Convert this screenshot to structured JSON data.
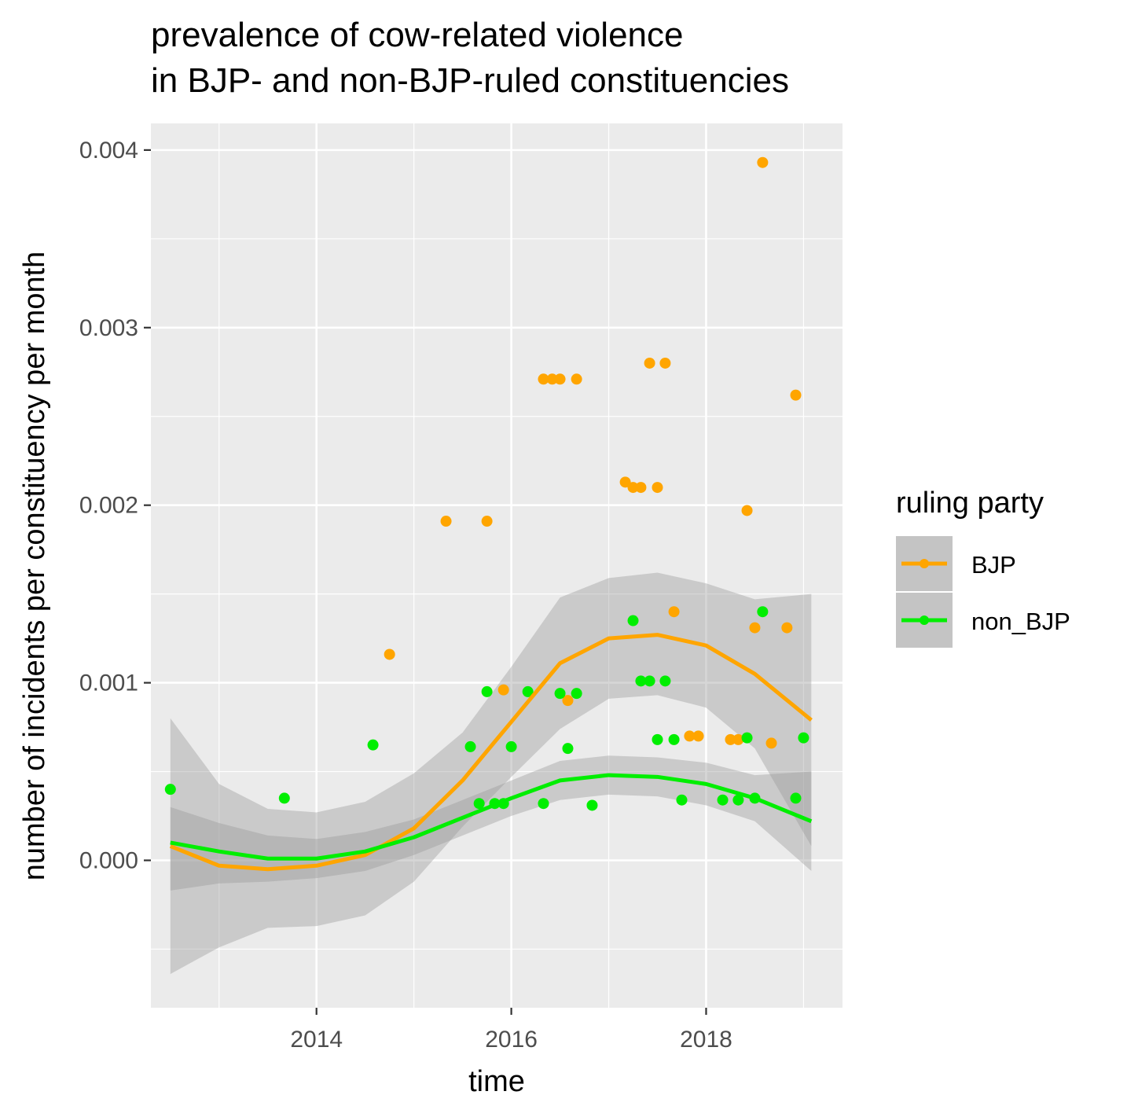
{
  "chart_data": {
    "type": "scatter",
    "title": [
      "prevalence of cow-related violence",
      "in BJP- and non-BJP-ruled constituencies"
    ],
    "xlabel": "time",
    "ylabel": "number of incidents per constituency per month",
    "xlim": [
      2012.3,
      2019.4
    ],
    "ylim": [
      -0.00083,
      0.00415
    ],
    "x_ticks": [
      2014,
      2016,
      2018
    ],
    "x_tick_labels": [
      "2014",
      "2016",
      "2018"
    ],
    "y_ticks": [
      0.0,
      0.001,
      0.002,
      0.003,
      0.004
    ],
    "y_tick_labels": [
      "0.000",
      "0.001",
      "0.002",
      "0.003",
      "0.004"
    ],
    "grid": true,
    "legend": {
      "title": "ruling party",
      "position": "right",
      "entries": [
        "BJP",
        "non_BJP"
      ]
    },
    "colors": {
      "BJP": "#FFA500",
      "non_BJP": "#00EE00",
      "panel_bg": "#EBEBEB",
      "grid": "#FFFFFF",
      "ribbon": "#999999"
    },
    "series": [
      {
        "name": "BJP",
        "points": [
          [
            2014.75,
            0.00116
          ],
          [
            2015.33,
            0.00191
          ],
          [
            2015.75,
            0.00191
          ],
          [
            2015.92,
            0.00096
          ],
          [
            2016.33,
            0.00271
          ],
          [
            2016.42,
            0.00271
          ],
          [
            2016.5,
            0.00271
          ],
          [
            2016.58,
            0.0009
          ],
          [
            2016.67,
            0.00271
          ],
          [
            2017.17,
            0.00213
          ],
          [
            2017.25,
            0.0021
          ],
          [
            2017.33,
            0.0021
          ],
          [
            2017.42,
            0.0028
          ],
          [
            2017.5,
            0.0021
          ],
          [
            2017.58,
            0.0028
          ],
          [
            2017.67,
            0.0014
          ],
          [
            2017.83,
            0.0007
          ],
          [
            2017.92,
            0.0007
          ],
          [
            2018.25,
            0.00068
          ],
          [
            2018.33,
            0.00068
          ],
          [
            2018.42,
            0.00197
          ],
          [
            2018.5,
            0.00131
          ],
          [
            2018.58,
            0.00393
          ],
          [
            2018.67,
            0.00066
          ],
          [
            2018.83,
            0.00131
          ],
          [
            2018.92,
            0.00262
          ]
        ],
        "smooth": [
          [
            2012.5,
            8e-05
          ],
          [
            2013.0,
            -3e-05
          ],
          [
            2013.5,
            -5e-05
          ],
          [
            2014.0,
            -3e-05
          ],
          [
            2014.5,
            3e-05
          ],
          [
            2015.0,
            0.00018
          ],
          [
            2015.5,
            0.00045
          ],
          [
            2016.0,
            0.00078
          ],
          [
            2016.5,
            0.00111
          ],
          [
            2017.0,
            0.00125
          ],
          [
            2017.5,
            0.00127
          ],
          [
            2018.0,
            0.00121
          ],
          [
            2018.5,
            0.00105
          ],
          [
            2019.08,
            0.00079
          ]
        ],
        "ribbon_upper": [
          [
            2012.5,
            0.0008
          ],
          [
            2013.0,
            0.00043
          ],
          [
            2013.5,
            0.00029
          ],
          [
            2014.0,
            0.00027
          ],
          [
            2014.5,
            0.00033
          ],
          [
            2015.0,
            0.00049
          ],
          [
            2015.5,
            0.00072
          ],
          [
            2016.0,
            0.00109
          ],
          [
            2016.5,
            0.00148
          ],
          [
            2017.0,
            0.00159
          ],
          [
            2017.5,
            0.00162
          ],
          [
            2018.0,
            0.00156
          ],
          [
            2018.5,
            0.00147
          ],
          [
            2019.08,
            0.0015
          ]
        ],
        "ribbon_lower": [
          [
            2012.5,
            -0.00064
          ],
          [
            2013.0,
            -0.00049
          ],
          [
            2013.5,
            -0.00038
          ],
          [
            2014.0,
            -0.00037
          ],
          [
            2014.5,
            -0.00031
          ],
          [
            2015.0,
            -0.00012
          ],
          [
            2015.5,
            0.00019
          ],
          [
            2016.0,
            0.00047
          ],
          [
            2016.5,
            0.00074
          ],
          [
            2017.0,
            0.00091
          ],
          [
            2017.5,
            0.00093
          ],
          [
            2018.0,
            0.00086
          ],
          [
            2018.5,
            0.00063
          ],
          [
            2019.08,
            8e-05
          ]
        ]
      },
      {
        "name": "non_BJP",
        "points": [
          [
            2012.5,
            0.0004
          ],
          [
            2013.67,
            0.00035
          ],
          [
            2014.58,
            0.00065
          ],
          [
            2015.58,
            0.00064
          ],
          [
            2015.67,
            0.00032
          ],
          [
            2015.75,
            0.00095
          ],
          [
            2015.83,
            0.00032
          ],
          [
            2015.92,
            0.00032
          ],
          [
            2016.0,
            0.00064
          ],
          [
            2016.17,
            0.00095
          ],
          [
            2016.33,
            0.00032
          ],
          [
            2016.5,
            0.00094
          ],
          [
            2016.58,
            0.00063
          ],
          [
            2016.67,
            0.00094
          ],
          [
            2016.83,
            0.00031
          ],
          [
            2017.25,
            0.00135
          ],
          [
            2017.33,
            0.00101
          ],
          [
            2017.42,
            0.00101
          ],
          [
            2017.5,
            0.00068
          ],
          [
            2017.58,
            0.00101
          ],
          [
            2017.67,
            0.00068
          ],
          [
            2017.75,
            0.00034
          ],
          [
            2018.17,
            0.00034
          ],
          [
            2018.33,
            0.00034
          ],
          [
            2018.42,
            0.00069
          ],
          [
            2018.5,
            0.00035
          ],
          [
            2018.58,
            0.0014
          ],
          [
            2018.92,
            0.00035
          ],
          [
            2019.0,
            0.00069
          ]
        ],
        "smooth": [
          [
            2012.5,
            0.0001
          ],
          [
            2013.0,
            5e-05
          ],
          [
            2013.5,
            1e-05
          ],
          [
            2014.0,
            1e-05
          ],
          [
            2014.5,
            5e-05
          ],
          [
            2015.0,
            0.00013
          ],
          [
            2015.5,
            0.00024
          ],
          [
            2016.0,
            0.00035
          ],
          [
            2016.5,
            0.00045
          ],
          [
            2017.0,
            0.00048
          ],
          [
            2017.5,
            0.00047
          ],
          [
            2018.0,
            0.00043
          ],
          [
            2018.5,
            0.00035
          ],
          [
            2019.08,
            0.00022
          ]
        ],
        "ribbon_upper": [
          [
            2012.5,
            0.0003
          ],
          [
            2013.0,
            0.00021
          ],
          [
            2013.5,
            0.00014
          ],
          [
            2014.0,
            0.00012
          ],
          [
            2014.5,
            0.00016
          ],
          [
            2015.0,
            0.00023
          ],
          [
            2015.5,
            0.00034
          ],
          [
            2016.0,
            0.00045
          ],
          [
            2016.5,
            0.00056
          ],
          [
            2017.0,
            0.00059
          ],
          [
            2017.5,
            0.00058
          ],
          [
            2018.0,
            0.00055
          ],
          [
            2018.5,
            0.00048
          ],
          [
            2019.08,
            0.0005
          ]
        ],
        "ribbon_lower": [
          [
            2012.5,
            -0.00017
          ],
          [
            2013.0,
            -0.00013
          ],
          [
            2013.5,
            -0.00012
          ],
          [
            2014.0,
            -0.0001
          ],
          [
            2014.5,
            -6e-05
          ],
          [
            2015.0,
            3e-05
          ],
          [
            2015.5,
            0.00014
          ],
          [
            2016.0,
            0.00025
          ],
          [
            2016.5,
            0.00034
          ],
          [
            2017.0,
            0.00037
          ],
          [
            2017.5,
            0.00036
          ],
          [
            2018.0,
            0.00031
          ],
          [
            2018.5,
            0.00022
          ],
          [
            2019.08,
            -6e-05
          ]
        ]
      }
    ]
  }
}
